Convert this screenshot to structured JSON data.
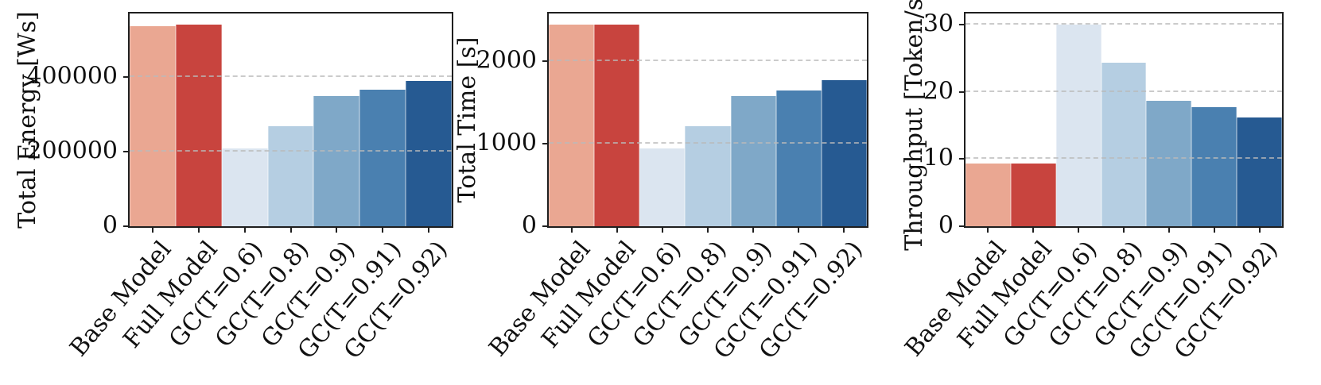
{
  "figure": {
    "description": "Three bar charts comparing Base Model, Full Model and GC threshold variants",
    "palette_note": "red pair for baseline models, sequential blues for GC variants",
    "grid_color": "#b9b9b9",
    "axis_color": "#1f1f1f"
  },
  "chart_data": [
    {
      "type": "bar",
      "title": "",
      "xlabel": "",
      "ylabel": "Total Energy [Ws]",
      "categories": [
        "Base Model",
        "Full Model",
        "GC(T=0.6)",
        "GC(T=0.8)",
        "GC(T=0.9)",
        "GC(T=0.91)",
        "GC(T=0.92)"
      ],
      "values": [
        535000,
        541000,
        209000,
        267000,
        349000,
        366000,
        390000
      ],
      "ylim": [
        0,
        570000
      ],
      "yticks": [
        {
          "v": 0,
          "label": "0"
        },
        {
          "v": 200000,
          "label": "200000"
        },
        {
          "v": 400000,
          "label": "400000"
        }
      ],
      "colors": [
        "#EAA792",
        "#C8443E",
        "#DBE5F0",
        "#B5CEE2",
        "#7FA8C8",
        "#4A80B0",
        "#265A92"
      ],
      "grid": "horizontal dashed at yticks",
      "legend": "none"
    },
    {
      "type": "bar",
      "title": "",
      "xlabel": "",
      "ylabel": "Total Time [s]",
      "categories": [
        "Base Model",
        "Full Model",
        "GC(T=0.6)",
        "GC(T=0.8)",
        "GC(T=0.9)",
        "GC(T=0.91)",
        "GC(T=0.92)"
      ],
      "values": [
        2445,
        2445,
        946,
        1210,
        1581,
        1651,
        1771
      ],
      "ylim": [
        0,
        2580
      ],
      "yticks": [
        {
          "v": 0,
          "label": "0"
        },
        {
          "v": 1000,
          "label": "1000"
        },
        {
          "v": 2000,
          "label": "2000"
        }
      ],
      "colors": [
        "#EAA792",
        "#C8443E",
        "#DBE5F0",
        "#B5CEE2",
        "#7FA8C8",
        "#4A80B0",
        "#265A92"
      ],
      "grid": "horizontal dashed at yticks",
      "legend": "none"
    },
    {
      "type": "bar",
      "title": "",
      "xlabel": "",
      "ylabel": "Throughput [Token/s]",
      "categories": [
        "Base Model",
        "Full Model",
        "GC(T=0.6)",
        "GC(T=0.8)",
        "GC(T=0.9)",
        "GC(T=0.91)",
        "GC(T=0.92)"
      ],
      "values": [
        9.3,
        9.3,
        30.0,
        24.4,
        18.7,
        17.7,
        16.2
      ],
      "ylim": [
        0,
        31.7
      ],
      "yticks": [
        {
          "v": 0,
          "label": "0"
        },
        {
          "v": 10,
          "label": "10"
        },
        {
          "v": 20,
          "label": "20"
        },
        {
          "v": 30,
          "label": "30"
        }
      ],
      "colors": [
        "#EAA792",
        "#C8443E",
        "#DBE5F0",
        "#B5CEE2",
        "#7FA8C8",
        "#4A80B0",
        "#265A92"
      ],
      "grid": "horizontal dashed at yticks",
      "legend": "none"
    }
  ]
}
